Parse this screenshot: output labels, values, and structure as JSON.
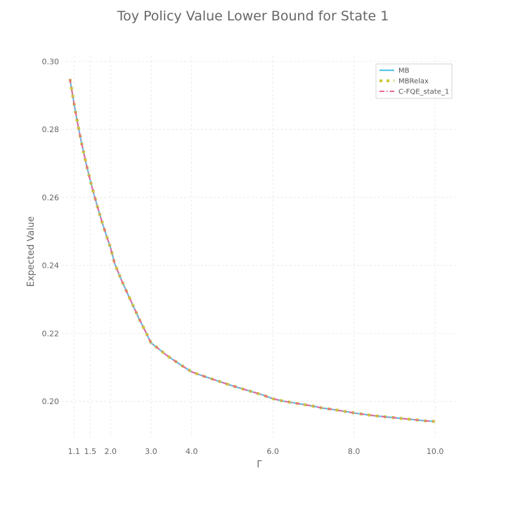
{
  "chart_data": {
    "type": "line",
    "title": "Toy Policy Value Lower Bound for State 1",
    "xlabel": "Γ",
    "ylabel": "Expected Value",
    "xlim": [
      0.8,
      10.5
    ],
    "ylim": [
      0.1895,
      0.3015
    ],
    "xticks": [
      1.1,
      1.5,
      2.0,
      3.0,
      4.0,
      6.0,
      8.0,
      10.0
    ],
    "xtick_labels": [
      "1.1",
      "1.5",
      "2.0",
      "3.0",
      "4.0",
      "6.0",
      "8.0",
      "10.0"
    ],
    "yticks": [
      0.2,
      0.22,
      0.24,
      0.26,
      0.28,
      0.3
    ],
    "ytick_labels": [
      "0.20",
      "0.22",
      "0.24",
      "0.26",
      "0.28",
      "0.30"
    ],
    "grid": true,
    "legend_position": "top-right",
    "x": [
      1.0,
      1.04,
      1.08,
      1.12,
      1.16,
      1.2,
      1.25,
      1.3,
      1.35,
      1.4,
      1.5,
      1.6,
      1.7,
      1.8,
      1.9,
      2.0,
      2.1,
      2.25,
      2.4,
      2.55,
      2.7,
      2.85,
      3.0,
      3.2,
      3.4,
      3.6,
      3.8,
      4.0,
      4.25,
      4.5,
      4.75,
      5.0,
      5.25,
      5.5,
      5.75,
      6.0,
      6.25,
      6.5,
      6.75,
      7.0,
      7.25,
      7.5,
      7.75,
      8.0,
      8.25,
      8.5,
      8.75,
      9.0,
      9.25,
      9.5,
      9.75,
      10.0
    ],
    "series": [
      {
        "name": "MB",
        "color": "#5bc8e8",
        "style": "solid",
        "values": [
          0.2948,
          0.2918,
          0.289,
          0.2862,
          0.2836,
          0.2811,
          0.2781,
          0.2752,
          0.2725,
          0.2699,
          0.265,
          0.2605,
          0.2563,
          0.2524,
          0.2487,
          0.2452,
          0.2406,
          0.2362,
          0.2322,
          0.2283,
          0.2244,
          0.2208,
          0.2172,
          0.2153,
          0.2134,
          0.2118,
          0.2102,
          0.2087,
          0.2076,
          0.2066,
          0.2056,
          0.2046,
          0.2037,
          0.2028,
          0.2019,
          0.2008,
          0.2001,
          0.1996,
          0.1991,
          0.1986,
          0.198,
          0.1976,
          0.1971,
          0.1966,
          0.1962,
          0.1958,
          0.1955,
          0.1952,
          0.1949,
          0.1946,
          0.1943,
          0.1941
        ]
      },
      {
        "name": "MBRelax",
        "color": "#cdc93a",
        "style": "dotted",
        "values": [
          0.2948,
          0.2918,
          0.289,
          0.2862,
          0.2836,
          0.2811,
          0.2781,
          0.2752,
          0.2725,
          0.2699,
          0.265,
          0.2605,
          0.2563,
          0.2524,
          0.2487,
          0.2452,
          0.2406,
          0.2362,
          0.2322,
          0.2283,
          0.2244,
          0.2208,
          0.2172,
          0.2153,
          0.2134,
          0.2118,
          0.2102,
          0.2087,
          0.2076,
          0.2066,
          0.2056,
          0.2046,
          0.2037,
          0.2028,
          0.2019,
          0.2008,
          0.2001,
          0.1996,
          0.1991,
          0.1986,
          0.198,
          0.1976,
          0.1971,
          0.1966,
          0.1962,
          0.1958,
          0.1955,
          0.1952,
          0.1949,
          0.1946,
          0.1943,
          0.1941
        ]
      },
      {
        "name": "C-FQE_state_1",
        "color": "#e8689a",
        "style": "dashdot",
        "values": [
          0.2948,
          0.2918,
          0.289,
          0.2862,
          0.2836,
          0.2811,
          0.2781,
          0.2752,
          0.2725,
          0.2699,
          0.265,
          0.2605,
          0.2563,
          0.2524,
          0.2487,
          0.2452,
          0.2406,
          0.2362,
          0.2322,
          0.2283,
          0.2244,
          0.2208,
          0.2172,
          0.2153,
          0.2134,
          0.2118,
          0.2102,
          0.2087,
          0.2076,
          0.2066,
          0.2056,
          0.2046,
          0.2037,
          0.2028,
          0.2019,
          0.2008,
          0.2001,
          0.1996,
          0.1991,
          0.1986,
          0.198,
          0.1976,
          0.1971,
          0.1966,
          0.1962,
          0.1958,
          0.1955,
          0.1952,
          0.1949,
          0.1946,
          0.1943,
          0.1941
        ]
      }
    ]
  }
}
